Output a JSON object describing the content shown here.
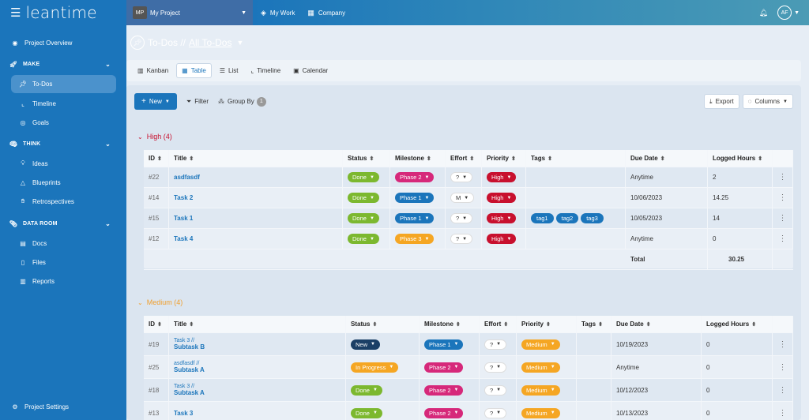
{
  "topbar": {
    "brand": "leantime",
    "project_initials": "MP",
    "project_name": "My Project",
    "nav": [
      {
        "label": "My Work",
        "icon": "briefcase-icon"
      },
      {
        "label": "Company",
        "icon": "building-icon"
      }
    ],
    "user_initials": "AF"
  },
  "sidebar": {
    "project_overview": "Project Overview",
    "make": "MAKE",
    "todos": "To-Dos",
    "timeline": "Timeline",
    "goals": "Goals",
    "think": "THINK",
    "ideas": "Ideas",
    "blueprints": "Blueprints",
    "retrospectives": "Retrospectives",
    "data_room": "DATA ROOM",
    "docs": "Docs",
    "files": "Files",
    "reports": "Reports",
    "project_settings": "Project Settings"
  },
  "header": {
    "title": "To-Dos //",
    "subtitle": "All To-Dos"
  },
  "tabs": [
    "Kanban",
    "Table",
    "List",
    "Timeline",
    "Calendar"
  ],
  "toolbar": {
    "new": "New",
    "filter": "Filter",
    "group_by": "Group By",
    "group_count": "1",
    "export": "Export",
    "columns": "Columns"
  },
  "colors": {
    "done": "#7cb82f",
    "phase2": "#d6287a",
    "phase1": "#1b75bb",
    "phase3": "#f5a623",
    "high": "#c8102e",
    "medium": "#f5a623",
    "new": "#1b3f66",
    "in_progress": "#f5a623"
  },
  "high": {
    "label": "High (4)",
    "headers": {
      "id": "ID",
      "title": "Title",
      "status": "Status",
      "milestone": "Milestone",
      "effort": "Effort",
      "priority": "Priority",
      "tags": "Tags",
      "due": "Due Date",
      "logged": "Logged Hours"
    },
    "rows": [
      {
        "id": "#22",
        "title": "asdfasdf",
        "status": "Done",
        "milestone": "Phase 2",
        "effort": "?",
        "priority": "High",
        "tags": [],
        "due": "Anytime",
        "logged": "2"
      },
      {
        "id": "#14",
        "title": "Task 2",
        "status": "Done",
        "milestone": "Phase 1",
        "effort": "M",
        "priority": "High",
        "tags": [],
        "due": "10/06/2023",
        "logged": "14.25"
      },
      {
        "id": "#15",
        "title": "Task 1",
        "status": "Done",
        "milestone": "Phase 1",
        "effort": "?",
        "priority": "High",
        "tags": [
          "tag1",
          "tag2",
          "tag3"
        ],
        "due": "10/05/2023",
        "logged": "14"
      },
      {
        "id": "#12",
        "title": "Task 4",
        "status": "Done",
        "milestone": "Phase 3",
        "effort": "?",
        "priority": "High",
        "tags": [],
        "due": "Anytime",
        "logged": "0"
      }
    ],
    "total_label": "Total",
    "total_value": "30.25"
  },
  "medium": {
    "label": "Medium (4)",
    "rows": [
      {
        "id": "#19",
        "parent": "Task 3 //",
        "title": "Subtask B",
        "status": "New",
        "milestone": "Phase 1",
        "effort": "?",
        "priority": "Medium",
        "due": "10/19/2023",
        "logged": "0"
      },
      {
        "id": "#25",
        "parent": "asdfasdf //",
        "title": "Subtask A",
        "status": "In Progress",
        "milestone": "Phase 2",
        "effort": "?",
        "priority": "Medium",
        "due": "Anytime",
        "logged": "0"
      },
      {
        "id": "#18",
        "parent": "Task 3 //",
        "title": "Subtask A",
        "status": "Done",
        "milestone": "Phase 2",
        "effort": "?",
        "priority": "Medium",
        "due": "10/12/2023",
        "logged": "0"
      },
      {
        "id": "#13",
        "parent": "",
        "title": "Task 3",
        "status": "Done",
        "milestone": "Phase 2",
        "effort": "?",
        "priority": "Medium",
        "due": "10/13/2023",
        "logged": "0"
      }
    ]
  }
}
